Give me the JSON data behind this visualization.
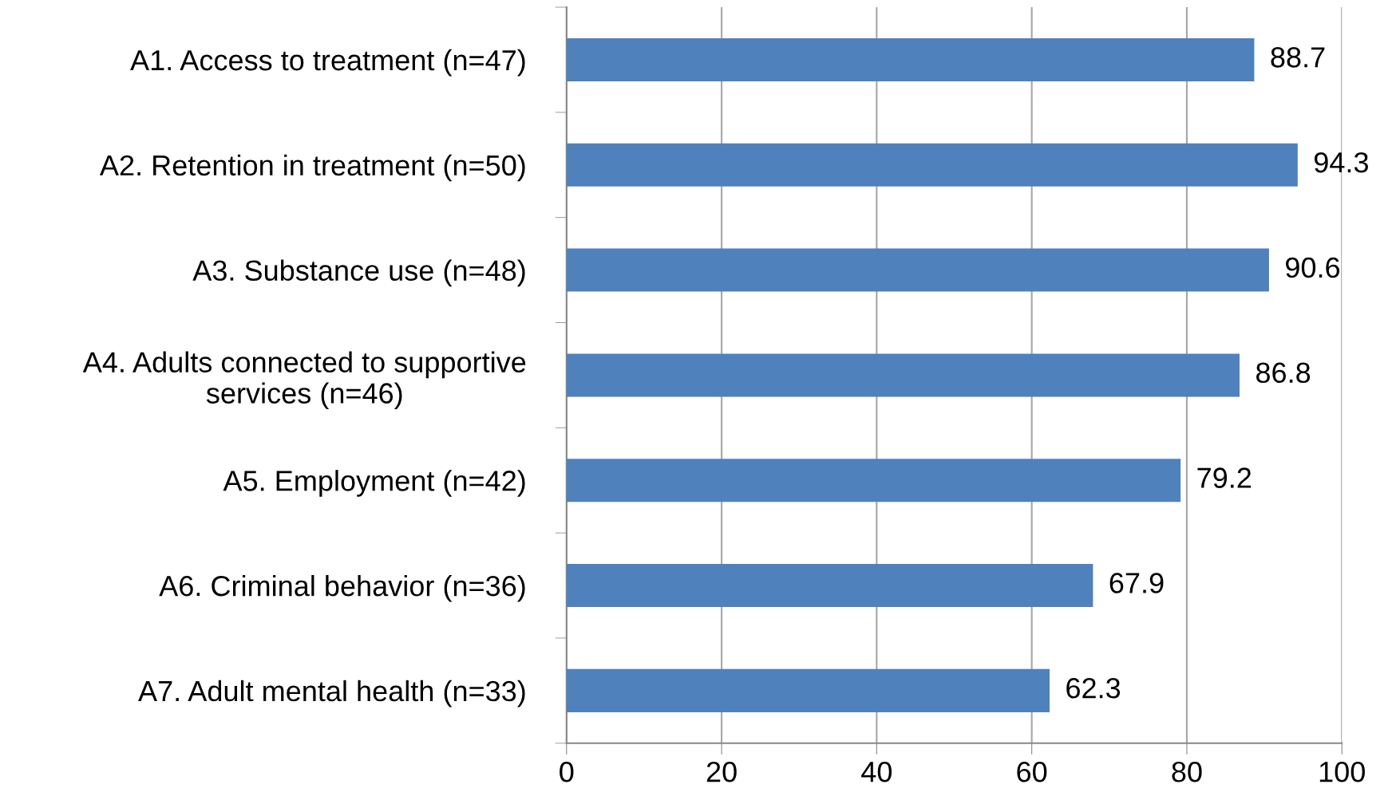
{
  "chart_data": {
    "type": "bar",
    "orientation": "horizontal",
    "categories": [
      "A1. Access to treatment (n=47)",
      "A2. Retention in treatment (n=50)",
      "A3. Substance use (n=48)",
      "A4. Adults connected to supportive\nservices (n=46)",
      "A5. Employment (n=42)",
      "A6. Criminal behavior (n=36)",
      "A7. Adult mental health (n=33)"
    ],
    "values": [
      88.7,
      94.3,
      90.6,
      86.8,
      79.2,
      67.9,
      62.3
    ],
    "color": "#4f81bd",
    "xlim": [
      0,
      100
    ],
    "xticks": [
      0,
      20,
      40,
      60,
      80,
      100
    ],
    "grid": "x",
    "data_labels": true,
    "legend": false
  }
}
